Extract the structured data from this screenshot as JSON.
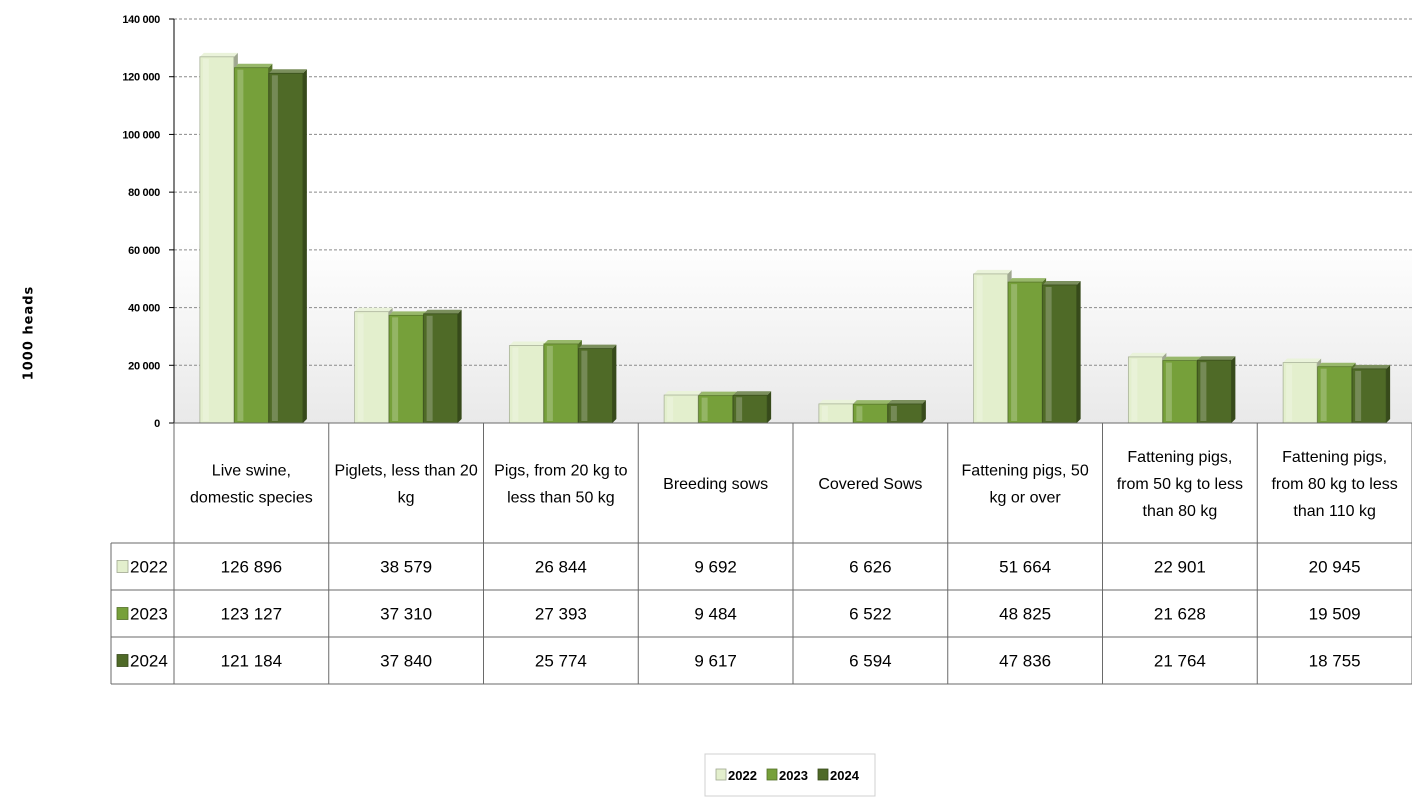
{
  "chart_data": {
    "type": "bar",
    "ylabel": "1000 heads",
    "ylim": [
      0,
      140000
    ],
    "yticks": [
      0,
      20000,
      40000,
      60000,
      80000,
      100000,
      120000,
      140000
    ],
    "ytick_labels": [
      "0",
      "20 000",
      "40 000",
      "60 000",
      "80 000",
      "100 000",
      "120 000",
      "140 000"
    ],
    "grid": true,
    "legend_position": "bottom",
    "categories": [
      [
        "Live swine,",
        "domestic species"
      ],
      [
        "Piglets, less than 20",
        "kg"
      ],
      [
        "Pigs, from 20 kg to",
        "less than 50 kg"
      ],
      [
        "Breeding sows"
      ],
      [
        "Covered Sows"
      ],
      [
        "Fattening pigs, 50",
        "kg or over"
      ],
      [
        "Fattening pigs,",
        "from 50 kg to less",
        "than 80 kg"
      ],
      [
        "Fattening pigs,",
        "from 80 kg to less",
        "than 110 kg"
      ]
    ],
    "series": [
      {
        "name": "2022",
        "color": "#e3efcd",
        "values": [
          126896,
          38579,
          26844,
          9692,
          6626,
          51664,
          22901,
          20945
        ],
        "labels": [
          "126 896",
          "38 579",
          "26 844",
          "9 692",
          "6 626",
          "51 664",
          "22 901",
          "20 945"
        ]
      },
      {
        "name": "2023",
        "color": "#76a03a",
        "values": [
          123127,
          37310,
          27393,
          9484,
          6522,
          48825,
          21628,
          19509
        ],
        "labels": [
          "123 127",
          "37 310",
          "27 393",
          "9 484",
          "6 522",
          "48 825",
          "21 628",
          "19 509"
        ]
      },
      {
        "name": "2024",
        "color": "#4f6a27",
        "values": [
          121184,
          37840,
          25774,
          9617,
          6594,
          47836,
          21764,
          18755
        ],
        "labels": [
          "121 184",
          "37 840",
          "25 774",
          "9 617",
          "6 594",
          "47 836",
          "21 764",
          "18 755"
        ]
      }
    ]
  }
}
